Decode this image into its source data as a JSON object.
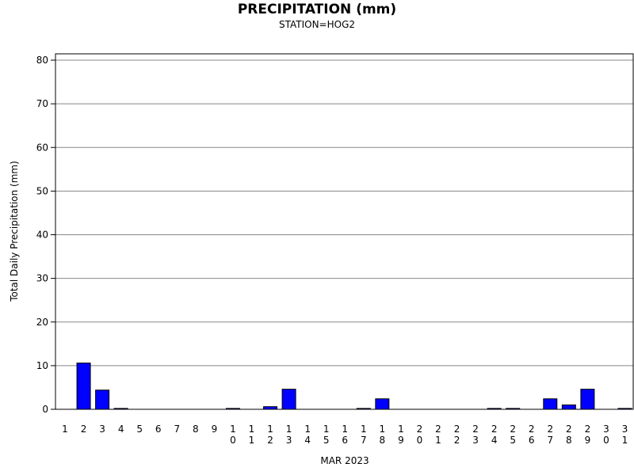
{
  "chart_data": {
    "type": "bar",
    "title": "PRECIPITATION (mm)",
    "subtitle": "STATION=HOG2",
    "ylabel": "Total Daily Precipitation (mm)",
    "xlabel": "MAR 2023",
    "ylim": [
      0,
      80
    ],
    "yticks": [
      0,
      10,
      20,
      30,
      40,
      50,
      60,
      70,
      80
    ],
    "grid": true,
    "bar_color": "#0000ff",
    "categories": [
      "1",
      "2",
      "3",
      "4",
      "5",
      "6",
      "7",
      "8",
      "9",
      "10",
      "11",
      "12",
      "13",
      "14",
      "15",
      "16",
      "17",
      "18",
      "19",
      "20",
      "21",
      "22",
      "23",
      "24",
      "25",
      "26",
      "27",
      "28",
      "29",
      "30",
      "31"
    ],
    "values": [
      0,
      10.6,
      4.4,
      0.2,
      0,
      0,
      0,
      0,
      0,
      0.2,
      0,
      0.6,
      4.6,
      0,
      0,
      0,
      0.2,
      2.4,
      0,
      0,
      0,
      0,
      0,
      0.2,
      0.2,
      0,
      2.4,
      1.0,
      4.6,
      0,
      0.2
    ]
  }
}
